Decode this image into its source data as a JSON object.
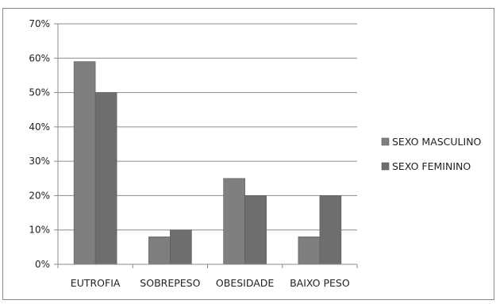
{
  "chart_data": {
    "type": "bar",
    "title": "",
    "xlabel": "",
    "ylabel": "",
    "categories": [
      "EUTROFIA",
      "SOBREPESO",
      "OBESIDADE",
      "BAIXO PESO"
    ],
    "series": [
      {
        "name": "SEXO MASCULINO",
        "values": [
          59,
          8,
          25,
          8
        ],
        "color": "#7f7f7f"
      },
      {
        "name": "SEXO FEMININO",
        "values": [
          50,
          10,
          20,
          20
        ],
        "color": "#6e6e6e"
      }
    ],
    "ylim": [
      0,
      70
    ],
    "yticks": [
      0,
      10,
      20,
      30,
      40,
      50,
      60,
      70
    ],
    "ytick_labels": [
      "0%",
      "10%",
      "20%",
      "30%",
      "40%",
      "50%",
      "60%",
      "70%"
    ],
    "grid": true,
    "legend": "right"
  }
}
